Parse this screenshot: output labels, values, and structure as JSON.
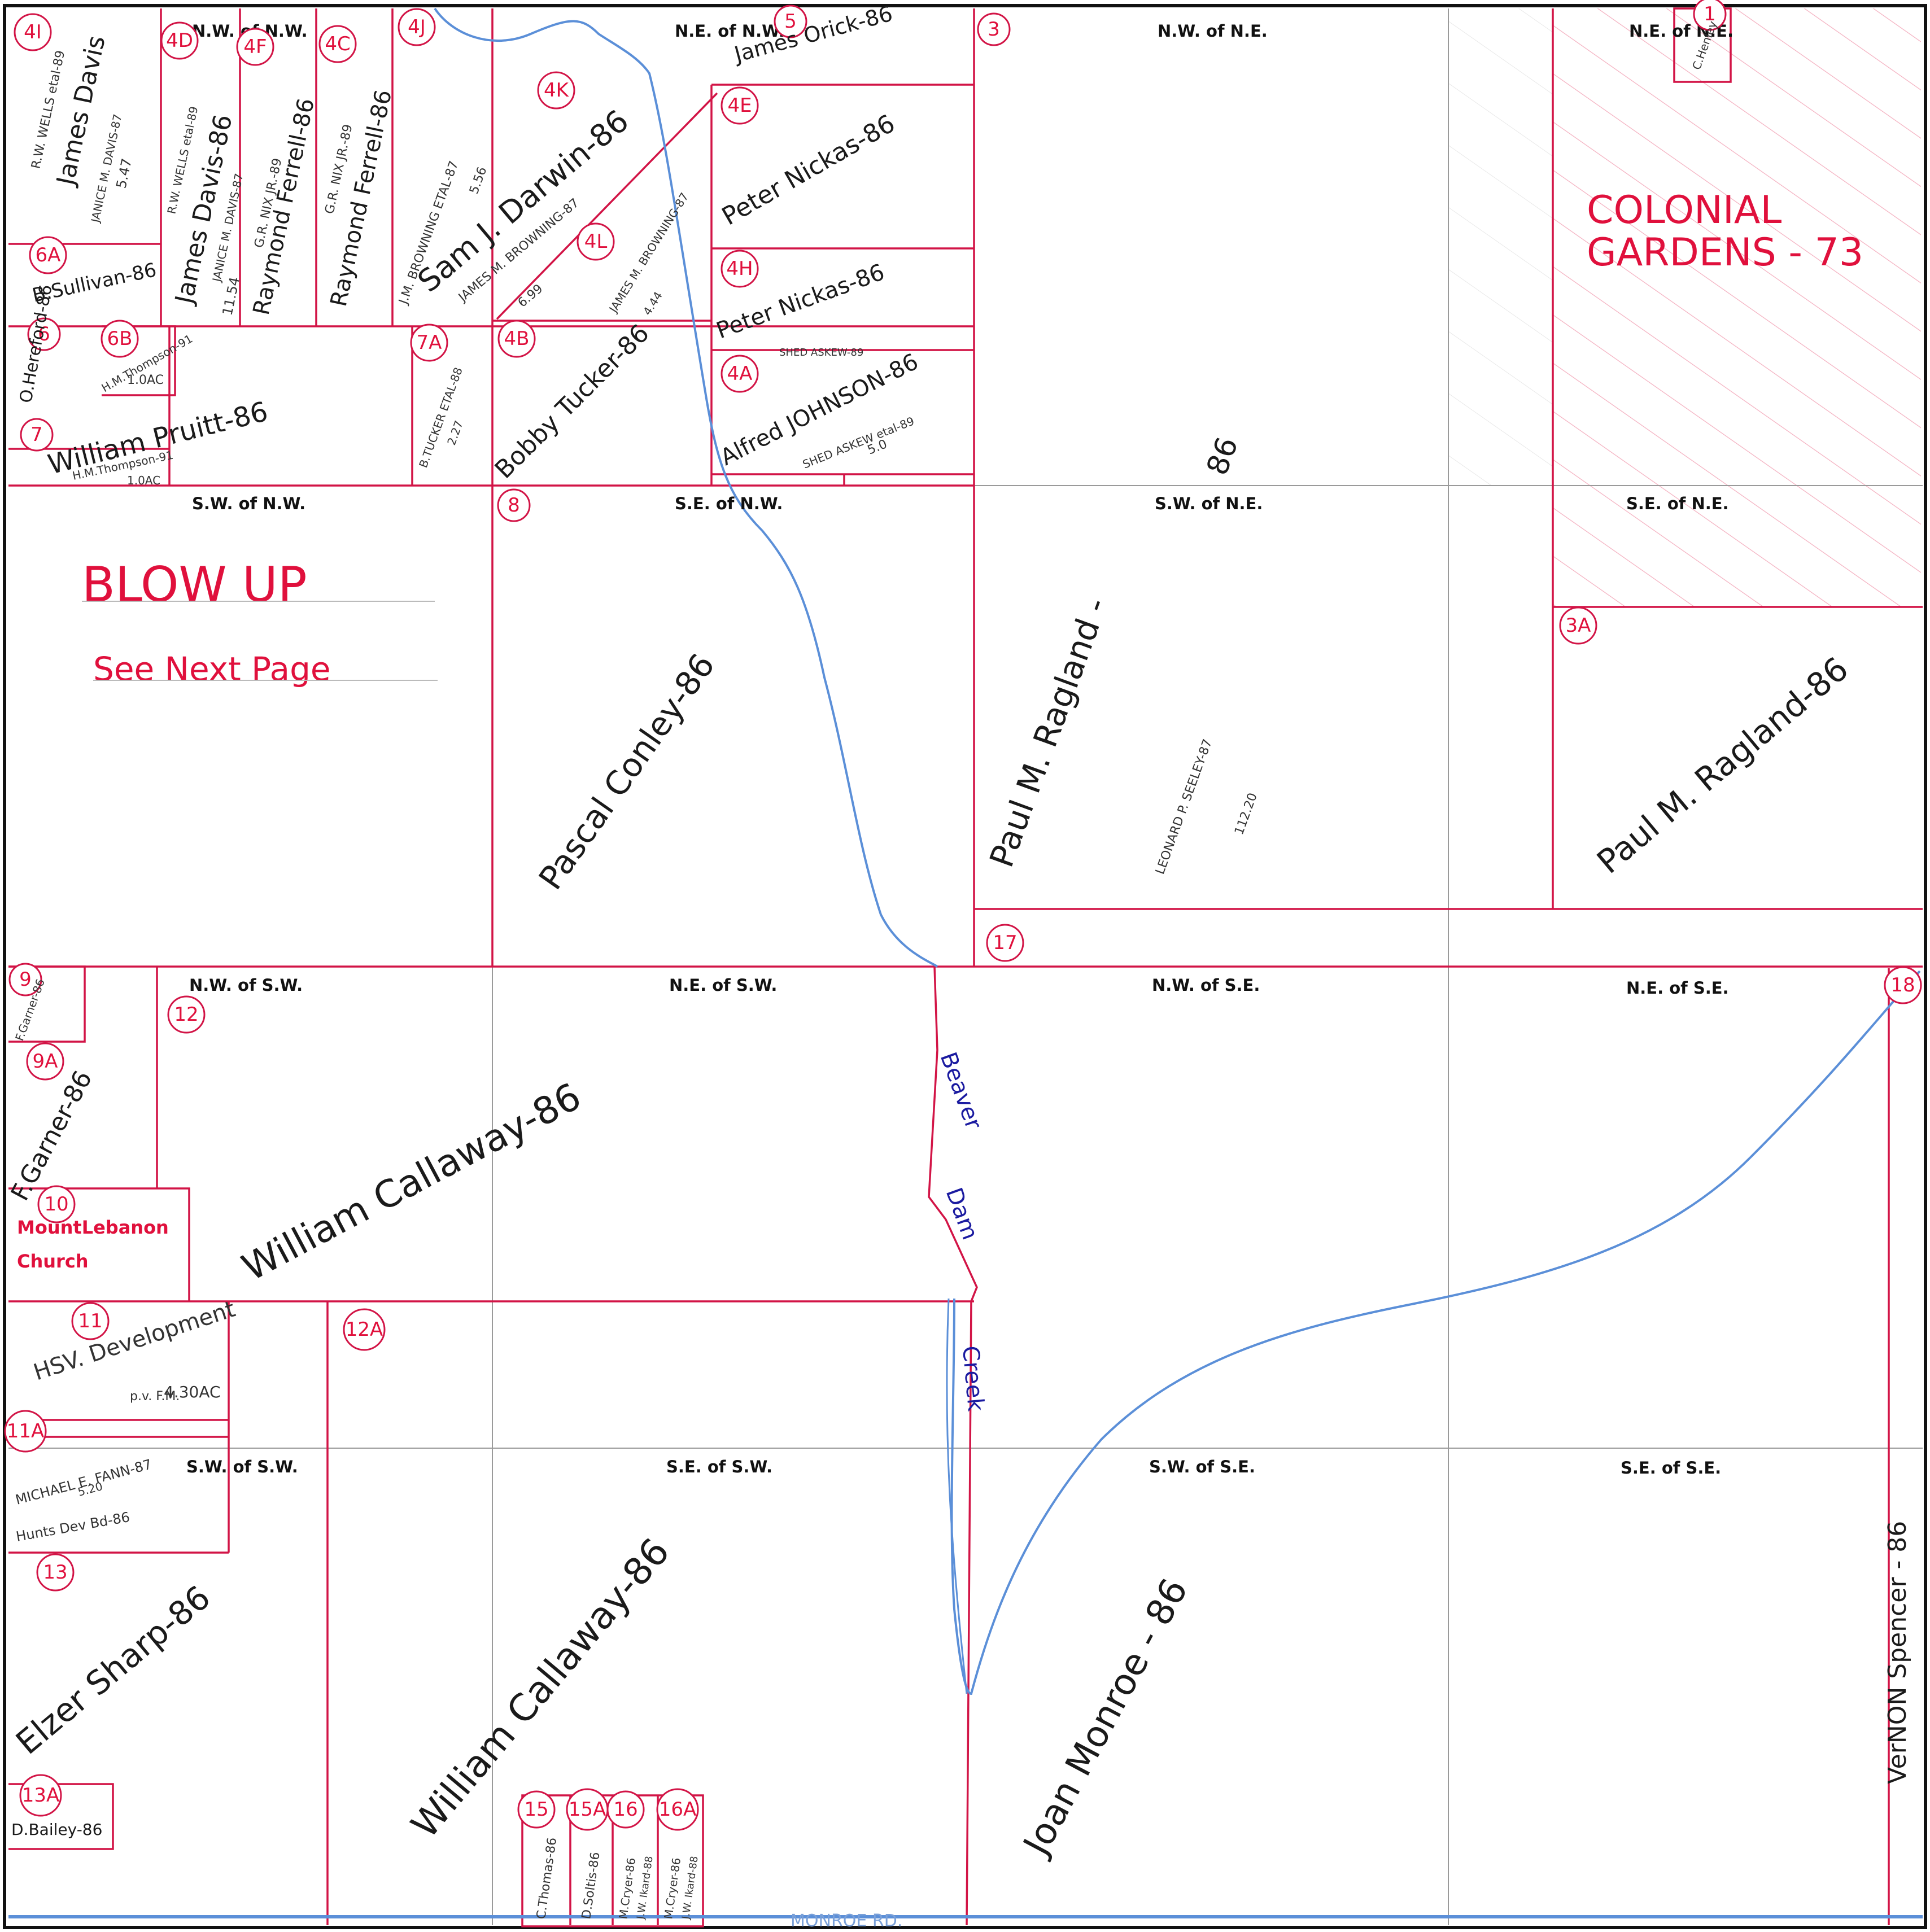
{
  "colors": {
    "parcel_line": "#d21446",
    "quarter_line": "#9a9a9a",
    "creek": "#5b8fd8",
    "road": "#5b8fd8",
    "owner_text": "#1a1a1a",
    "red_text": "#e0103c",
    "creek_label": "#1a1aa0"
  },
  "quarters": {
    "nw_nw": "N.W. of N.W.",
    "ne_nw": "N.E. of N.W.",
    "nw_ne": "N.W. of N.E.",
    "ne_ne": "N.E. of N.E.",
    "sw_nw": "S.W. of N.W.",
    "se_nw": "S.E. of N.W.",
    "sw_ne": "S.W. of N.E.",
    "se_ne": "S.E. of N.E.",
    "nw_sw": "N.W. of S.W.",
    "ne_sw": "N.E. of S.W.",
    "nw_se": "N.W. of S.E.",
    "ne_se": "N.E. of S.E.",
    "sw_sw": "S.W. of S.W.",
    "se_sw": "S.E. of S.W.",
    "sw_se": "S.W. of S.E.",
    "se_se": "S.E. of S.E."
  },
  "parcel_numbers": {
    "p4I": "4I",
    "p4D": "4D",
    "p4F": "4F",
    "p4C": "4C",
    "p4J": "4J",
    "p5": "5",
    "p3": "3",
    "p4K": "4K",
    "p4E": "4E",
    "p4L": "4L",
    "p4H": "4H",
    "p4A": "4A",
    "p4B": "4B",
    "p6A": "6A",
    "p6": "6",
    "p6B": "6B",
    "p7": "7",
    "p7A": "7A",
    "p8": "8",
    "p3A": "3A",
    "p17": "17",
    "p9": "9",
    "p9A": "9A",
    "p12": "12",
    "p10": "10",
    "p11": "11",
    "p12A": "12A",
    "p11A": "11A",
    "p13": "13",
    "p13A": "13A",
    "p15": "15",
    "p15A": "15A",
    "p16": "16",
    "p16A": "16A",
    "p18": "18",
    "p1": "1"
  },
  "owners": {
    "james_davis_1": "James Davis",
    "rw_wells_1": "R.W. WELLS etal-89",
    "janice_davis_1": "JANICE M. DAVIS-87",
    "davis_acres_1": "5.47",
    "rw_wells_2": "R.W. WELLS etal-89",
    "james_davis_2": "James Davis-86",
    "janice_davis_2": "JANICE M. DAVIS-87",
    "davis_acres_2": "11.54",
    "gr_nix_1": "G.R. NIX JR.-89",
    "raymond_ferrell_1": "Raymond Ferrell-86",
    "gr_nix_2": "G.R. NIX JR.-89",
    "raymond_ferrell_2": "Raymond Ferrell-86",
    "jm_browning_1": "J.M. BROWNING ETAL-87",
    "browning_acres_1": "5.56",
    "sam_darwin": "Sam J. Darwin-86",
    "james_browning_1": "JAMES M. BROWNING-87",
    "browning_acres_2": "6.99",
    "james_browning_2": "JAMES M. BROWNING-87",
    "browning_acres_3": "4.44",
    "james_orick": "James Orick-86",
    "peter_nickas_1": "Peter Nickas-86",
    "peter_nickas_2": "Peter Nickas-86",
    "shed_askew_1": "SHED ASKEW-89",
    "alfred_johnson": "Alfred JOHNSON-86",
    "shed_askew_2": "SHED ASKEW etal-89",
    "shed_acres": "5.0",
    "bobby_tucker": "Bobby Tucker-86",
    "b_tucker": "B.TUCKER ETAL-88",
    "tucker_acres": "2.27",
    "b_sullivan": "B.Sullivan-86",
    "o_hereford": "O.Hereford-86",
    "hm_thompson_1": "H.M.Thompson-91",
    "hm_acres_1": "1.0AC",
    "william_pruitt": "William Pruitt-86",
    "hm_thompson_2": "H.M.Thompson-91",
    "hm_acres_2": "1.0AC",
    "pascal_conley": "Pascal Conley-86",
    "paul_ragland_1": "Paul M. Ragland -",
    "leonard_seeley": "LEONARD P. SEELEY-87",
    "seeley_acres": "112.20",
    "ne_86": "86",
    "c_henley": "C.Henley",
    "paul_ragland_2": "Paul M. Ragland-86",
    "f_garner_1": "F.Garner-86",
    "f_garner_2": "F.Garner-86",
    "william_callaway_1": "William Callaway-86",
    "hsv_development": "HSV. Development",
    "hsv_line2": "p.v. F.M.",
    "hsv_acres": "4.30AC",
    "michael_fann": "MICHAEL E. FANN-87",
    "fann_acres": "5.20",
    "hunts_dev": "Hunts Dev Bd-86",
    "elzer_sharp": "Elzer Sharp-86",
    "d_bailey": "D.Bailey-86",
    "william_callaway_2": "William Callaway-86",
    "c_thomas": "C.Thomas-86",
    "d_soltis": "D.Soltis-86",
    "m_cryer_1": "M.Cryer-86",
    "jw_ikard_1": "J.W. Ikard-88",
    "m_cryer_2": "M.Cryer-86",
    "jw_ikard_2": "J.W. Ikard-88",
    "joan_monroe": "Joan Monroe - 86",
    "vernon_spencer": "VerNON  Spencer - 86"
  },
  "red_labels": {
    "colonial_line1": "COLONIAL",
    "colonial_line2": "GARDENS  -  73",
    "blow_up": "BLOW  UP",
    "see_next": "See  Next  Page",
    "church_line1": "MountLebanon",
    "church_line2": "Church"
  },
  "creek_labels": {
    "beaver": "Beaver",
    "dam": "Dam",
    "creek": "Creek"
  },
  "road": {
    "monroe_rd": "MONROE   RD."
  }
}
